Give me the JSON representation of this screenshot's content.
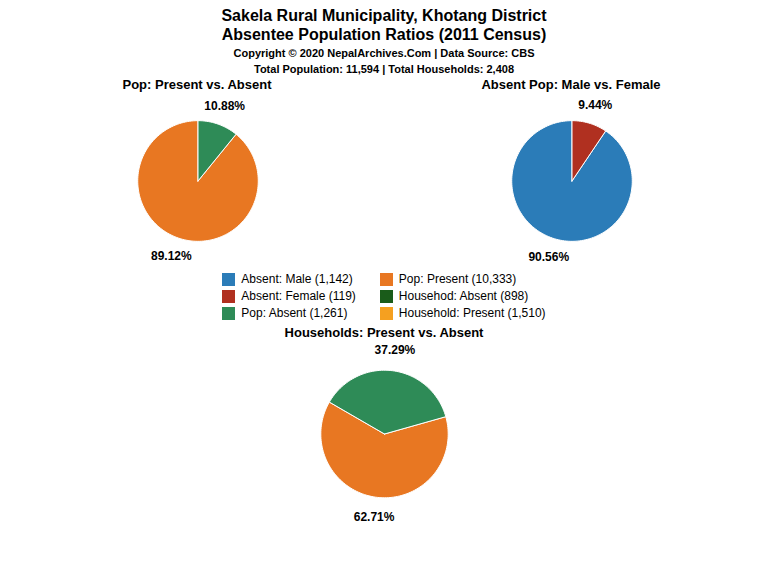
{
  "title": "Sakela Rural Municipality, Khotang District",
  "subtitle": "Absentee Population Ratios (2011 Census)",
  "annotations": [
    "Copyright © 2020 NepalArchives.Com | Data Source: CBS",
    "Total Population: 11,594 | Total Households: 2,408"
  ],
  "series": [
    {
      "name": "Absent: Male (1,142)",
      "color": "#2B7CB8"
    },
    {
      "name": "Absent: Female (119)",
      "color": "#B03020"
    },
    {
      "name": "Pop: Absent (1,261)",
      "color": "#2E8B57"
    },
    {
      "name": "Pop: Present (10,333)",
      "color": "#E87722"
    },
    {
      "name": "Househod: Absent (898)",
      "color": "#1A5C1A"
    },
    {
      "name": "Household: Present (1,510)",
      "color": "#F5A020"
    }
  ],
  "chart_data": [
    {
      "type": "pie",
      "title": "Pop: Present vs. Absent",
      "values": [
        89.12,
        10.88
      ],
      "value_labels": [
        "89.12%",
        "10.88%"
      ],
      "colors": [
        "#E87722",
        "#2E8B57"
      ],
      "data_labels": true
    },
    {
      "type": "pie",
      "title": "Absent Pop: Male vs. Female",
      "values": [
        90.56,
        9.44
      ],
      "value_labels": [
        "90.56%",
        "9.44%"
      ],
      "colors": [
        "#2B7CB8",
        "#B03020"
      ],
      "data_labels": true
    },
    {
      "type": "pie",
      "title": "Households: Present vs. Absent",
      "values": [
        62.71,
        37.29
      ],
      "value_labels": [
        "62.71%",
        "37.29%"
      ],
      "colors": [
        "#E87722",
        "#2E8B57"
      ],
      "data_labels": true
    }
  ]
}
